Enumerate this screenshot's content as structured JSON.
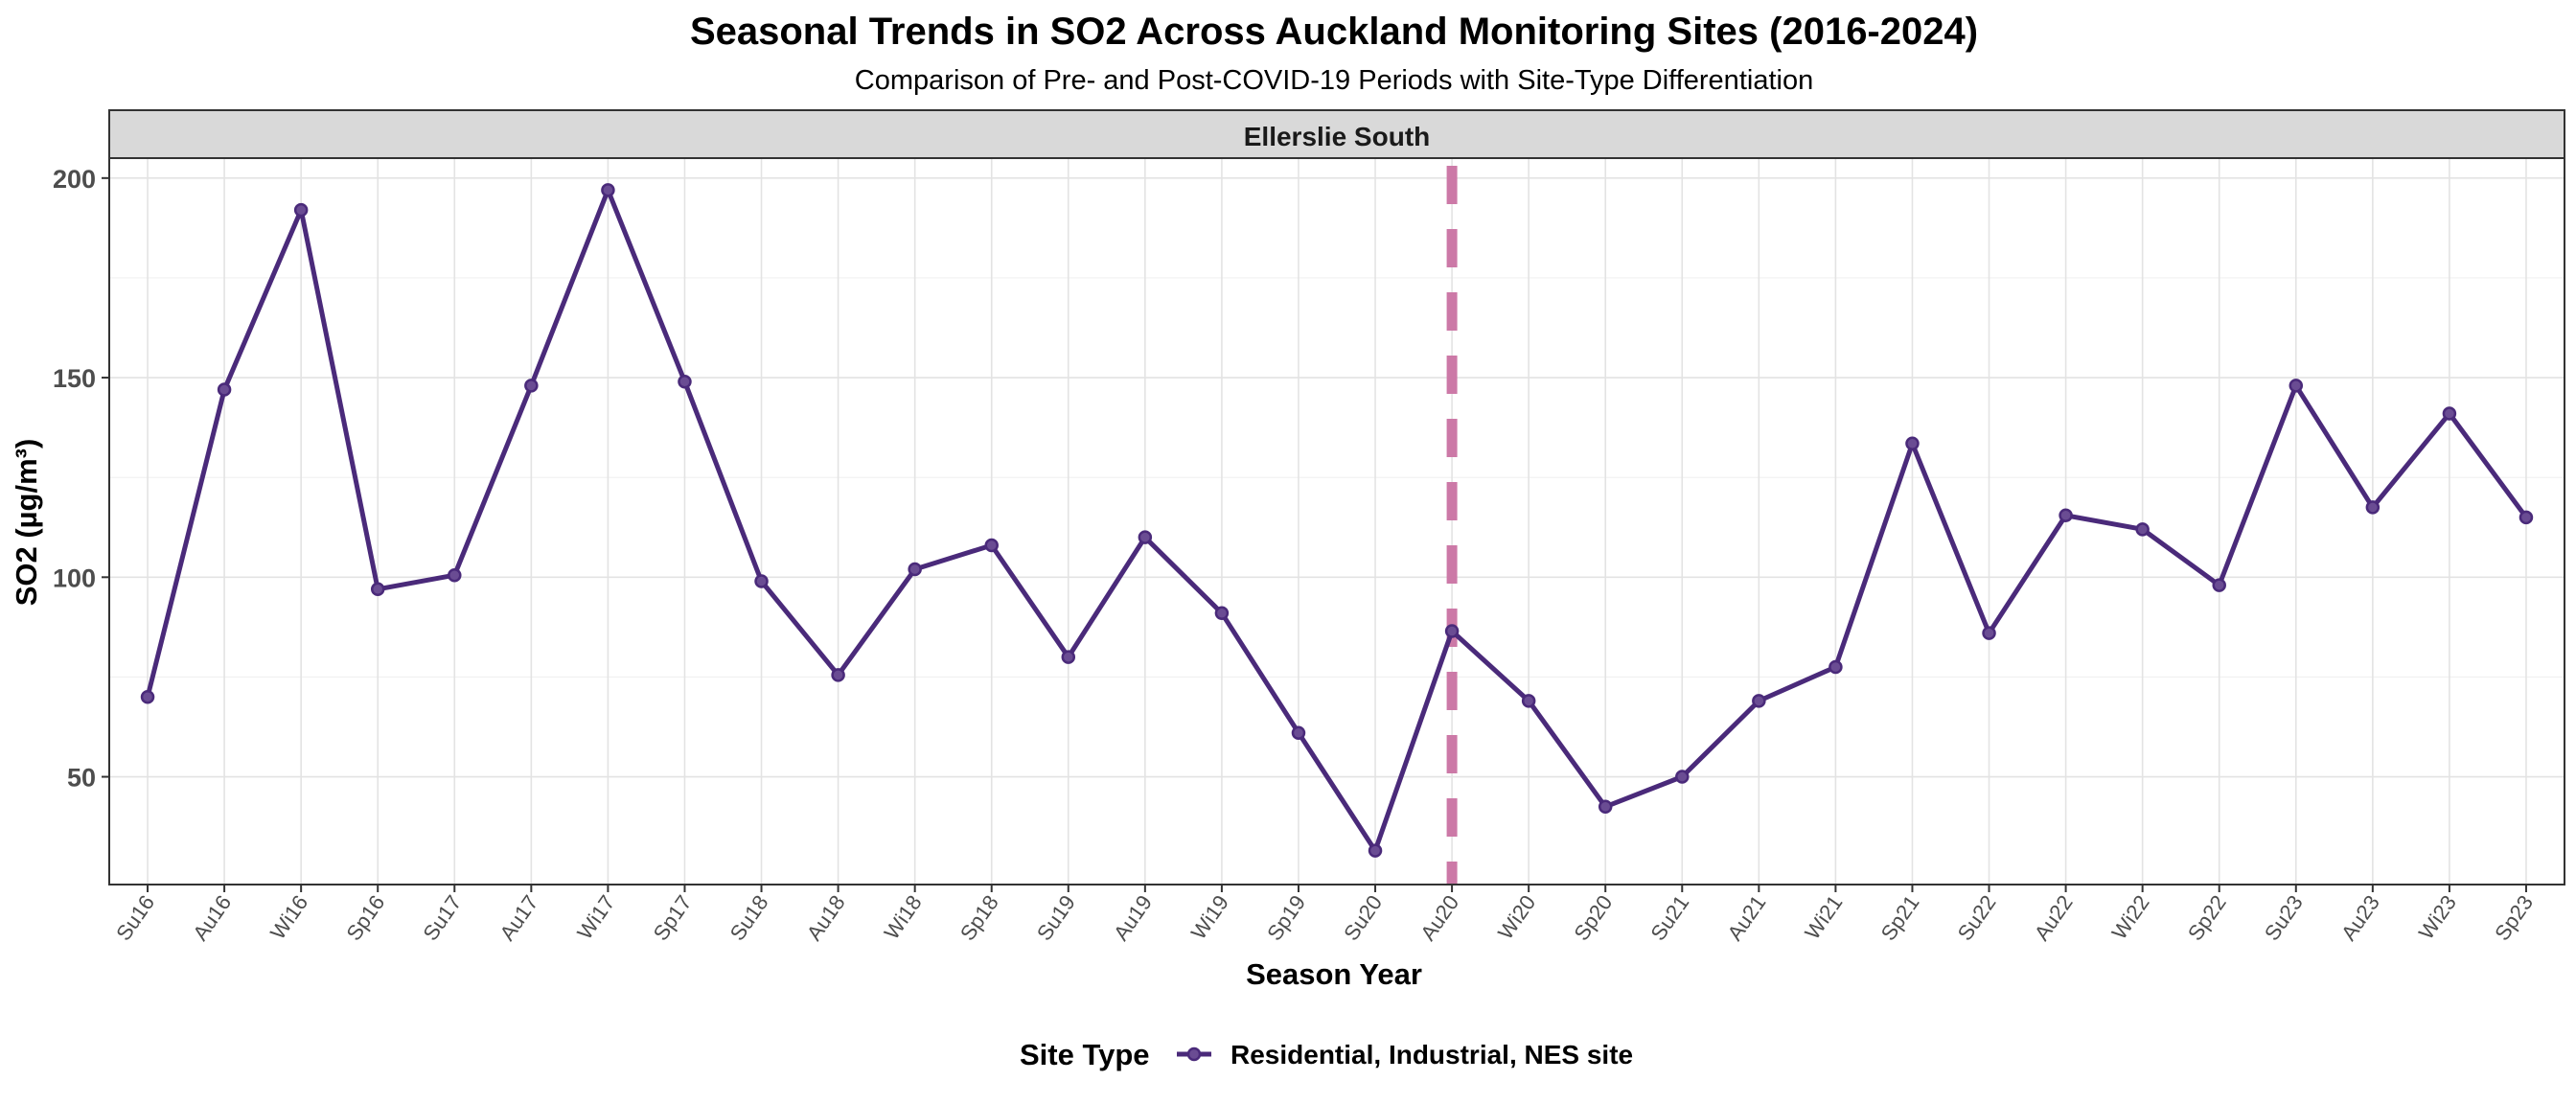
{
  "chart_data": {
    "type": "line",
    "title": "Seasonal Trends in  SO2  Across Auckland Monitoring Sites (2016-2024)",
    "subtitle": "Comparison of Pre- and Post-COVID-19 Periods with Site-Type Differentiation",
    "facet": "Ellerslie South",
    "xlabel": "Season Year",
    "ylabel": "SO2 (µg/m³)",
    "ylim": [
      23,
      205
    ],
    "yticks": [
      50,
      100,
      150,
      200
    ],
    "grid": true,
    "legend": {
      "title": "Site Type",
      "position": "bottom"
    },
    "categories": [
      "Su16",
      "Au16",
      "Wi16",
      "Sp16",
      "Su17",
      "Au17",
      "Wi17",
      "Sp17",
      "Su18",
      "Au18",
      "Wi18",
      "Sp18",
      "Su19",
      "Au19",
      "Wi19",
      "Sp19",
      "Su20",
      "Au20",
      "Wi20",
      "Sp20",
      "Su21",
      "Au21",
      "Wi21",
      "Sp21",
      "Su22",
      "Au22",
      "Wi22",
      "Sp22",
      "Su23",
      "Au23",
      "Wi23",
      "Sp23"
    ],
    "series": [
      {
        "name": "Residential, Industrial, NES site",
        "color": "#4a2a7a",
        "values": [
          70,
          147,
          192,
          97,
          100.5,
          148,
          197,
          149,
          99,
          75.5,
          102,
          108,
          80,
          110,
          91,
          61,
          31.5,
          86.5,
          69,
          42.5,
          50,
          69,
          77.5,
          133.5,
          86,
          115.5,
          112,
          98,
          148,
          117.5,
          141,
          115
        ]
      }
    ],
    "reference_line": {
      "category": "Au20",
      "color": "#cc79a7",
      "style": "dashed"
    }
  }
}
